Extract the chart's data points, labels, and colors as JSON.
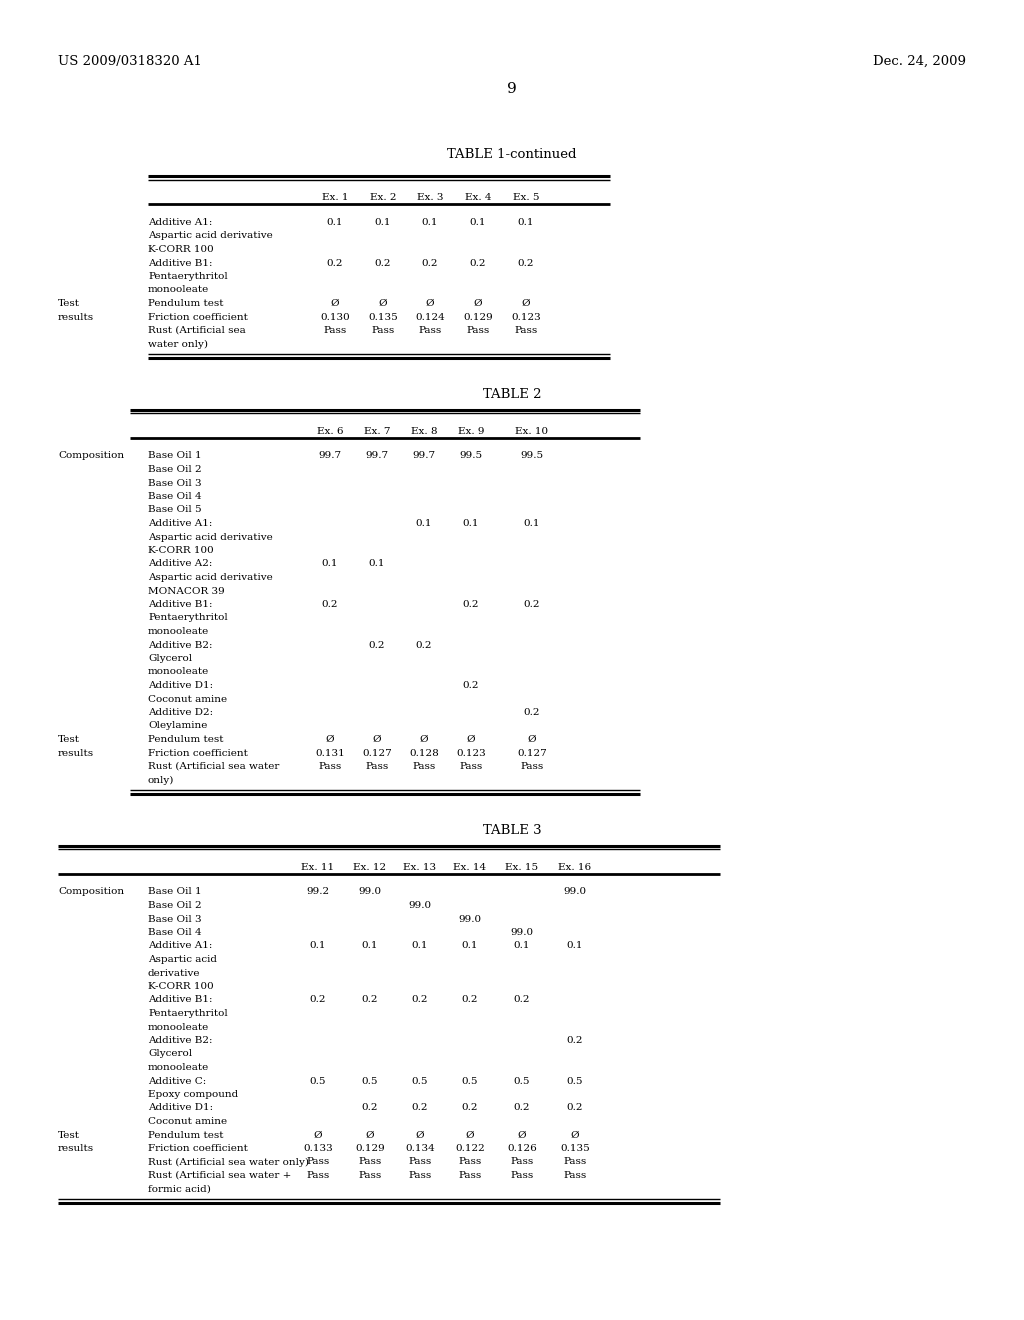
{
  "page_number": "9",
  "patent_number": "US 2009/0318320 A1",
  "patent_date": "Dec. 24, 2009",
  "bg_color": "#ffffff",
  "font_size_body": 7.5,
  "font_size_header": 8.5,
  "font_size_title": 9.0,
  "table1": {
    "title": "TABLE 1-continued",
    "col_labels": [
      "Ex. 1",
      "Ex. 2",
      "Ex. 3",
      "Ex. 4",
      "Ex. 5"
    ],
    "rows": [
      [
        "",
        "Additive A1:",
        "0.1",
        "0.1",
        "0.1",
        "0.1",
        "0.1"
      ],
      [
        "",
        "Aspartic acid derivative",
        "",
        "",
        "",
        "",
        ""
      ],
      [
        "",
        "K-CORR 100",
        "",
        "",
        "",
        "",
        ""
      ],
      [
        "",
        "Additive B1:",
        "0.2",
        "0.2",
        "0.2",
        "0.2",
        "0.2"
      ],
      [
        "",
        "Pentaerythritol",
        "",
        "",
        "",
        "",
        ""
      ],
      [
        "",
        "monooleate",
        "",
        "",
        "",
        "",
        ""
      ],
      [
        "Test",
        "Pendulum test",
        "Ø",
        "Ø",
        "Ø",
        "Ø",
        "Ø"
      ],
      [
        "results",
        "Friction coefficient",
        "0.130",
        "0.135",
        "0.124",
        "0.129",
        "0.123"
      ],
      [
        "",
        "Rust (Artificial sea",
        "Pass",
        "Pass",
        "Pass",
        "Pass",
        "Pass"
      ],
      [
        "",
        "water only)",
        "",
        "",
        "",
        "",
        ""
      ]
    ]
  },
  "table2": {
    "title": "TABLE 2",
    "col_labels": [
      "Ex. 6",
      "Ex. 7",
      "Ex. 8",
      "Ex. 9",
      "Ex. 10"
    ],
    "rows": [
      [
        "Composition",
        "Base Oil 1",
        "99.7",
        "99.7",
        "99.7",
        "99.5",
        "99.5"
      ],
      [
        "",
        "Base Oil 2",
        "",
        "",
        "",
        "",
        ""
      ],
      [
        "",
        "Base Oil 3",
        "",
        "",
        "",
        "",
        ""
      ],
      [
        "",
        "Base Oil 4",
        "",
        "",
        "",
        "",
        ""
      ],
      [
        "",
        "Base Oil 5",
        "",
        "",
        "",
        "",
        ""
      ],
      [
        "",
        "Additive A1:",
        "",
        "",
        "0.1",
        "0.1",
        "0.1"
      ],
      [
        "",
        "Aspartic acid derivative",
        "",
        "",
        "",
        "",
        ""
      ],
      [
        "",
        "K-CORR 100",
        "",
        "",
        "",
        "",
        ""
      ],
      [
        "",
        "Additive A2:",
        "0.1",
        "0.1",
        "",
        "",
        ""
      ],
      [
        "",
        "Aspartic acid derivative",
        "",
        "",
        "",
        "",
        ""
      ],
      [
        "",
        "MONACOR 39",
        "",
        "",
        "",
        "",
        ""
      ],
      [
        "",
        "Additive B1:",
        "0.2",
        "",
        "",
        "0.2",
        "0.2"
      ],
      [
        "",
        "Pentaerythritol",
        "",
        "",
        "",
        "",
        ""
      ],
      [
        "",
        "monooleate",
        "",
        "",
        "",
        "",
        ""
      ],
      [
        "",
        "Additive B2:",
        "",
        "0.2",
        "0.2",
        "",
        ""
      ],
      [
        "",
        "Glycerol",
        "",
        "",
        "",
        "",
        ""
      ],
      [
        "",
        "monooleate",
        "",
        "",
        "",
        "",
        ""
      ],
      [
        "",
        "Additive D1:",
        "",
        "",
        "",
        "0.2",
        ""
      ],
      [
        "",
        "Coconut amine",
        "",
        "",
        "",
        "",
        ""
      ],
      [
        "",
        "Additive D2:",
        "",
        "",
        "",
        "",
        "0.2"
      ],
      [
        "",
        "Oleylamine",
        "",
        "",
        "",
        "",
        ""
      ],
      [
        "Test",
        "Pendulum test",
        "Ø",
        "Ø",
        "Ø",
        "Ø",
        "Ø"
      ],
      [
        "results",
        "Friction coefficient",
        "0.131",
        "0.127",
        "0.128",
        "0.123",
        "0.127"
      ],
      [
        "",
        "Rust (Artificial sea water",
        "Pass",
        "Pass",
        "Pass",
        "Pass",
        "Pass"
      ],
      [
        "",
        "only)",
        "",
        "",
        "",
        "",
        ""
      ]
    ]
  },
  "table3": {
    "title": "TABLE 3",
    "col_labels": [
      "Ex. 11",
      "Ex. 12",
      "Ex. 13",
      "Ex. 14",
      "Ex. 15",
      "Ex. 16"
    ],
    "rows": [
      [
        "Composition",
        "Base Oil 1",
        "99.2",
        "99.0",
        "",
        "",
        "",
        "99.0"
      ],
      [
        "",
        "Base Oil 2",
        "",
        "",
        "99.0",
        "",
        "",
        ""
      ],
      [
        "",
        "Base Oil 3",
        "",
        "",
        "",
        "99.0",
        "",
        ""
      ],
      [
        "",
        "Base Oil 4",
        "",
        "",
        "",
        "",
        "99.0",
        ""
      ],
      [
        "",
        "Additive A1:",
        "0.1",
        "0.1",
        "0.1",
        "0.1",
        "0.1",
        "0.1"
      ],
      [
        "",
        "Aspartic acid",
        "",
        "",
        "",
        "",
        "",
        ""
      ],
      [
        "",
        "derivative",
        "",
        "",
        "",
        "",
        "",
        ""
      ],
      [
        "",
        "K-CORR 100",
        "",
        "",
        "",
        "",
        "",
        ""
      ],
      [
        "",
        "Additive B1:",
        "0.2",
        "0.2",
        "0.2",
        "0.2",
        "0.2",
        ""
      ],
      [
        "",
        "Pentaerythritol",
        "",
        "",
        "",
        "",
        "",
        ""
      ],
      [
        "",
        "monooleate",
        "",
        "",
        "",
        "",
        "",
        ""
      ],
      [
        "",
        "Additive B2:",
        "",
        "",
        "",
        "",
        "",
        "0.2"
      ],
      [
        "",
        "Glycerol",
        "",
        "",
        "",
        "",
        "",
        ""
      ],
      [
        "",
        "monooleate",
        "",
        "",
        "",
        "",
        "",
        ""
      ],
      [
        "",
        "Additive C:",
        "0.5",
        "0.5",
        "0.5",
        "0.5",
        "0.5",
        "0.5"
      ],
      [
        "",
        "Epoxy compound",
        "",
        "",
        "",
        "",
        "",
        ""
      ],
      [
        "",
        "Additive D1:",
        "",
        "0.2",
        "0.2",
        "0.2",
        "0.2",
        "0.2"
      ],
      [
        "",
        "Coconut amine",
        "",
        "",
        "",
        "",
        "",
        ""
      ],
      [
        "Test",
        "Pendulum test",
        "Ø",
        "Ø",
        "Ø",
        "Ø",
        "Ø",
        "Ø"
      ],
      [
        "results",
        "Friction coefficient",
        "0.133",
        "0.129",
        "0.134",
        "0.122",
        "0.126",
        "0.135"
      ],
      [
        "",
        "Rust (Artificial sea water only)",
        "Pass",
        "Pass",
        "Pass",
        "Pass",
        "Pass",
        "Pass"
      ],
      [
        "",
        "Rust (Artificial sea water +",
        "Pass",
        "Pass",
        "Pass",
        "Pass",
        "Pass",
        "Pass"
      ],
      [
        "",
        "formic acid)",
        "",
        "",
        "",
        "",
        "",
        ""
      ]
    ]
  }
}
